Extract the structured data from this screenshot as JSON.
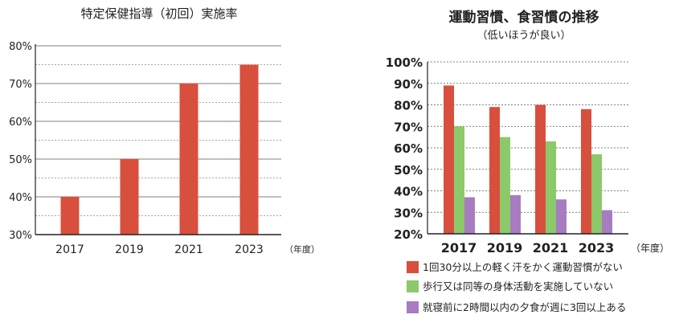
{
  "chart_data": [
    {
      "type": "bar",
      "title": "特定保健指導（初回）実施率",
      "categories": [
        "2017",
        "2019",
        "2021",
        "2023"
      ],
      "values": [
        40,
        50,
        70,
        75
      ],
      "ylim": [
        30,
        80
      ],
      "yticks": [
        "30%",
        "40%",
        "50%",
        "60%",
        "70%",
        "80%"
      ],
      "x_unit": "（年度）",
      "grid": true,
      "colors": {
        "bar": "#d94f3d"
      }
    },
    {
      "type": "bar",
      "title": "運動習慣、食習慣の推移",
      "subtitle": "（低いほうが良い）",
      "categories": [
        "2017",
        "2019",
        "2021",
        "2023"
      ],
      "series": [
        {
          "name": "1回30分以上の軽く汗をかく運動習慣がない",
          "values": [
            89,
            79,
            80,
            78
          ],
          "color": "#d94f3d"
        },
        {
          "name": "歩行又は同等の身体活動を実施していない",
          "values": [
            70,
            65,
            63,
            57
          ],
          "color": "#8cc96a"
        },
        {
          "name": "就寝前に2時間以内の夕食が週に3回以上ある",
          "values": [
            37,
            38,
            36,
            31
          ],
          "color": "#a77cc0"
        }
      ],
      "ylim": [
        20,
        100
      ],
      "yticks": [
        "20%",
        "30%",
        "40%",
        "50%",
        "60%",
        "70%",
        "80%",
        "90%",
        "100%"
      ],
      "x_unit": "（年度）",
      "grid": true,
      "legend_position": "bottom"
    }
  ]
}
